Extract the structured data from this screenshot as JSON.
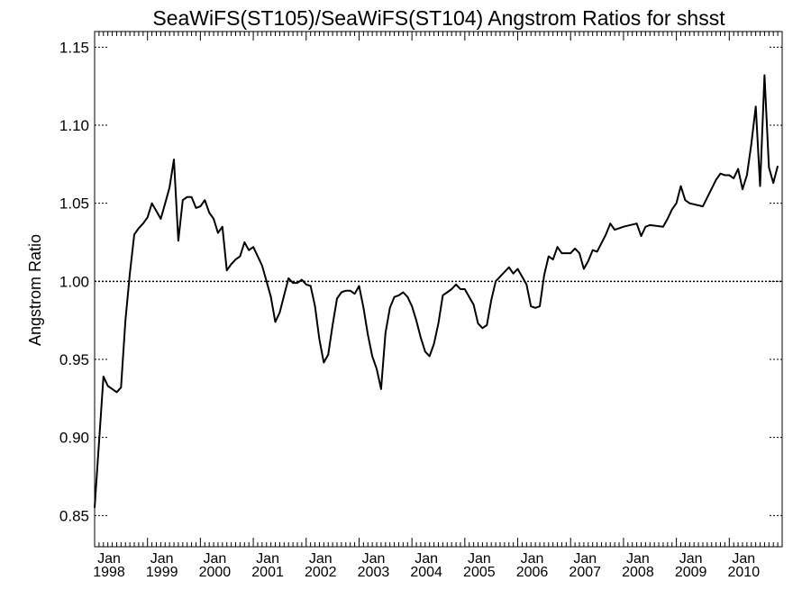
{
  "chart_data": {
    "type": "line",
    "title": "SeaWiFS(ST105)/SeaWiFS(ST104)  Angstrom Ratios for shsst",
    "ylabel": "Angstrom Ratio",
    "xlabel": "",
    "xlim": [
      "1998-01",
      "2011-01"
    ],
    "ylim": [
      0.83,
      1.16
    ],
    "y_ticks": [
      0.85,
      0.9,
      0.95,
      1.0,
      1.05,
      1.1,
      1.15
    ],
    "y_tick_labels": [
      "0.85",
      "0.90",
      "0.95",
      "1.00",
      "1.05",
      "1.10",
      "1.15"
    ],
    "x_ticks": [
      {
        "month": "Jan",
        "year": "1998"
      },
      {
        "month": "Jan",
        "year": "1999"
      },
      {
        "month": "Jan",
        "year": "2000"
      },
      {
        "month": "Jan",
        "year": "2001"
      },
      {
        "month": "Jan",
        "year": "2002"
      },
      {
        "month": "Jan",
        "year": "2003"
      },
      {
        "month": "Jan",
        "year": "2004"
      },
      {
        "month": "Jan",
        "year": "2005"
      },
      {
        "month": "Jan",
        "year": "2006"
      },
      {
        "month": "Jan",
        "year": "2007"
      },
      {
        "month": "Jan",
        "year": "2008"
      },
      {
        "month": "Jan",
        "year": "2009"
      },
      {
        "month": "Jan",
        "year": "2010"
      }
    ],
    "reference_line": 1.0,
    "grid": false,
    "series": [
      {
        "color": "#000000",
        "x": [
          "1998-01",
          "1998-03",
          "1998-04",
          "1998-05",
          "1998-06",
          "1998-07",
          "1998-08",
          "1998-09",
          "1998-10",
          "1998-11",
          "1998-12",
          "1999-01",
          "1999-02",
          "1999-03",
          "1999-04",
          "1999-05",
          "1999-06",
          "1999-07",
          "1999-08",
          "1999-09",
          "1999-10",
          "1999-11",
          "1999-12",
          "2000-01",
          "2000-02",
          "2000-03",
          "2000-04",
          "2000-05",
          "2000-06",
          "2000-07",
          "2000-08",
          "2000-09",
          "2000-10",
          "2000-11",
          "2000-12",
          "2001-01",
          "2001-02",
          "2001-03",
          "2001-04",
          "2001-05",
          "2001-06",
          "2001-07",
          "2001-08",
          "2001-09",
          "2001-10",
          "2001-11",
          "2001-12",
          "2002-01",
          "2002-02",
          "2002-03",
          "2002-04",
          "2002-05",
          "2002-06",
          "2002-07",
          "2002-08",
          "2002-09",
          "2002-10",
          "2002-11",
          "2002-12",
          "2003-01",
          "2003-02",
          "2003-03",
          "2003-04",
          "2003-05",
          "2003-06",
          "2003-07",
          "2003-08",
          "2003-09",
          "2003-10",
          "2003-11",
          "2003-12",
          "2004-01",
          "2004-02",
          "2004-03",
          "2004-04",
          "2004-05",
          "2004-06",
          "2004-07",
          "2004-08",
          "2004-09",
          "2004-10",
          "2004-11",
          "2004-12",
          "2005-01",
          "2005-02",
          "2005-03",
          "2005-04",
          "2005-05",
          "2005-06",
          "2005-07",
          "2005-08",
          "2005-09",
          "2005-10",
          "2005-11",
          "2005-12",
          "2006-01",
          "2006-02",
          "2006-03",
          "2006-04",
          "2006-05",
          "2006-06",
          "2006-07",
          "2006-08",
          "2006-09",
          "2006-10",
          "2006-11",
          "2006-12",
          "2007-01",
          "2007-02",
          "2007-03",
          "2007-04",
          "2007-05",
          "2007-06",
          "2007-07",
          "2007-09",
          "2007-10",
          "2007-11",
          "2007-12",
          "2008-01",
          "2008-04",
          "2008-05",
          "2008-06",
          "2008-07",
          "2008-10",
          "2008-11",
          "2008-12",
          "2009-01",
          "2009-02",
          "2009-03",
          "2009-04",
          "2009-07",
          "2009-10",
          "2009-11",
          "2009-12",
          "2010-01",
          "2010-02",
          "2010-03",
          "2010-04",
          "2010-05",
          "2010-06",
          "2010-07",
          "2010-08",
          "2010-09",
          "2010-10",
          "2010-11",
          "2010-12"
        ],
        "y": [
          0.855,
          0.939,
          0.933,
          0.931,
          0.929,
          0.932,
          0.975,
          1.005,
          1.03,
          1.034,
          1.037,
          1.041,
          1.05,
          1.045,
          1.04,
          1.05,
          1.06,
          1.078,
          1.026,
          1.052,
          1.054,
          1.054,
          1.047,
          1.048,
          1.052,
          1.044,
          1.04,
          1.031,
          1.035,
          1.007,
          1.011,
          1.014,
          1.016,
          1.025,
          1.02,
          1.022,
          1.016,
          1.01,
          1.0,
          0.99,
          0.974,
          0.98,
          0.991,
          1.002,
          0.999,
          0.999,
          1.001,
          0.998,
          0.997,
          0.984,
          0.963,
          0.948,
          0.953,
          0.972,
          0.989,
          0.993,
          0.994,
          0.994,
          0.992,
          0.997,
          0.983,
          0.966,
          0.952,
          0.944,
          0.931,
          0.967,
          0.983,
          0.99,
          0.991,
          0.993,
          0.99,
          0.984,
          0.975,
          0.964,
          0.955,
          0.952,
          0.96,
          0.973,
          0.991,
          0.993,
          0.995,
          0.998,
          0.995,
          0.995,
          0.99,
          0.985,
          0.973,
          0.97,
          0.972,
          0.988,
          1.0,
          1.003,
          1.006,
          1.009,
          1.005,
          1.008,
          1.003,
          0.998,
          0.984,
          0.983,
          0.984,
          1.004,
          1.016,
          1.014,
          1.022,
          1.018,
          1.018,
          1.018,
          1.021,
          1.018,
          1.008,
          1.013,
          1.02,
          1.019,
          1.03,
          1.037,
          1.033,
          1.034,
          1.035,
          1.037,
          1.029,
          1.035,
          1.036,
          1.035,
          1.04,
          1.046,
          1.05,
          1.061,
          1.052,
          1.05,
          1.048,
          1.065,
          1.069,
          1.068,
          1.068,
          1.066,
          1.072,
          1.059,
          1.068,
          1.088,
          1.112,
          1.061,
          1.132,
          1.073,
          1.063,
          1.074
        ]
      }
    ]
  }
}
